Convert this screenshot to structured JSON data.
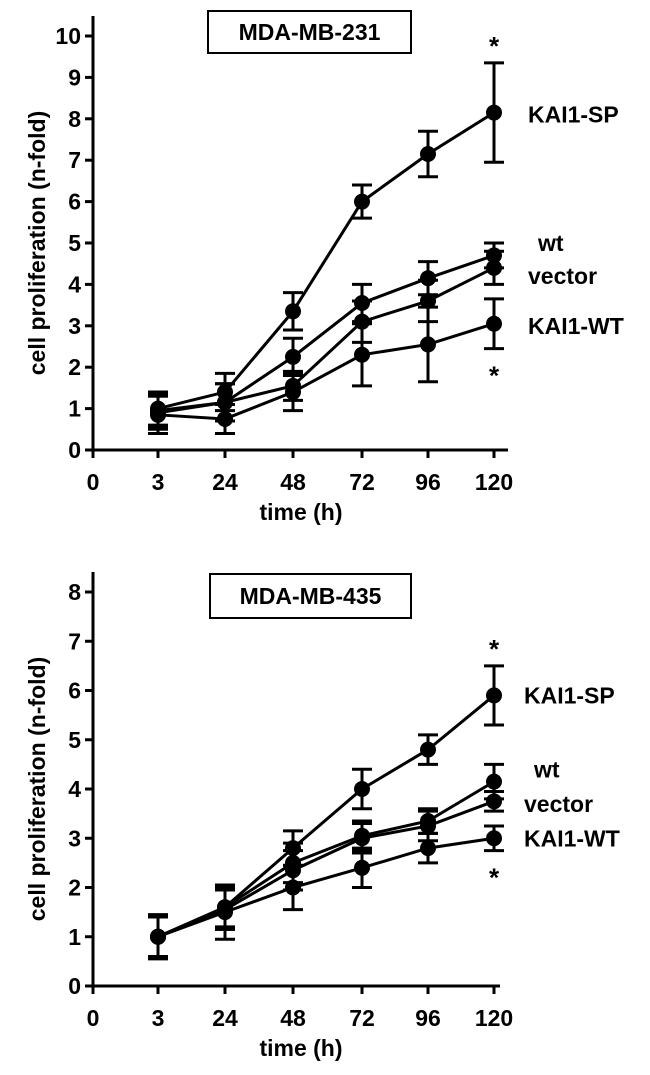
{
  "chart_data": [
    {
      "type": "line",
      "title": "MDA-MB-231",
      "xlabel": "time (h)",
      "ylabel": "cell proliferation (n-fold)",
      "x_ticks": [
        "0",
        "3",
        "24",
        "48",
        "72",
        "96",
        "120"
      ],
      "categories": [
        "3",
        "24",
        "48",
        "72",
        "96",
        "120"
      ],
      "y_ticks": [
        "0",
        "1",
        "2",
        "3",
        "4",
        "5",
        "6",
        "7",
        "8",
        "9",
        "10"
      ],
      "ylim": [
        0,
        10
      ],
      "series": [
        {
          "name": "KAI1-SP",
          "values": [
            1.0,
            1.4,
            3.35,
            6.0,
            7.15,
            8.15
          ],
          "err": [
            0.4,
            0.45,
            0.45,
            0.4,
            0.55,
            1.2
          ],
          "label_y": 8.1,
          "sig": "*",
          "sig_pos": "above"
        },
        {
          "name": "wt",
          "values": [
            0.95,
            1.15,
            2.25,
            3.55,
            4.15,
            4.7
          ],
          "err": [
            0.4,
            0.45,
            0.45,
            0.45,
            0.4,
            0.3
          ],
          "label_y": 5.0
        },
        {
          "name": "vector",
          "values": [
            0.9,
            1.15,
            1.55,
            3.1,
            3.6,
            4.4
          ],
          "err": [
            0.4,
            0.45,
            0.35,
            0.5,
            0.5,
            0.4
          ],
          "label_y": 4.2
        },
        {
          "name": "KAI1-WT",
          "values": [
            0.85,
            0.75,
            1.4,
            2.3,
            2.55,
            3.05
          ],
          "err": [
            0.45,
            0.35,
            0.45,
            0.75,
            0.9,
            0.6
          ],
          "label_y": 3.0,
          "sig": "*",
          "sig_pos": "below"
        }
      ]
    },
    {
      "type": "line",
      "title": "MDA-MB-435",
      "xlabel": "time (h)",
      "ylabel": "cell proliferation (n-fold)",
      "x_ticks": [
        "0",
        "3",
        "24",
        "48",
        "72",
        "96",
        "120"
      ],
      "categories": [
        "3",
        "24",
        "48",
        "72",
        "96",
        "120"
      ],
      "y_ticks": [
        "0",
        "1",
        "2",
        "3",
        "4",
        "5",
        "6",
        "7",
        "8"
      ],
      "ylim": [
        0,
        8
      ],
      "series": [
        {
          "name": "KAI1-SP",
          "values": [
            1.0,
            1.6,
            2.8,
            4.0,
            4.8,
            5.9
          ],
          "err": [
            0.4,
            0.45,
            0.35,
            0.4,
            0.3,
            0.6
          ],
          "label_y": 5.9,
          "sig": "*",
          "sig_pos": "above"
        },
        {
          "name": "wt",
          "values": [
            1.0,
            1.6,
            2.5,
            3.05,
            3.35,
            4.15
          ],
          "err": [
            0.4,
            0.4,
            0.4,
            0.3,
            0.25,
            0.35
          ],
          "label_y": 4.4
        },
        {
          "name": "vector",
          "values": [
            1.0,
            1.55,
            2.35,
            3.0,
            3.25,
            3.75
          ],
          "err": [
            0.4,
            0.4,
            0.4,
            0.3,
            0.3,
            0.2
          ],
          "label_y": 3.7
        },
        {
          "name": "KAI1-WT",
          "values": [
            1.0,
            1.5,
            2.0,
            2.4,
            2.8,
            3.0
          ],
          "err": [
            0.45,
            0.55,
            0.45,
            0.4,
            0.3,
            0.25
          ],
          "label_y": 3.0,
          "sig": "*",
          "sig_pos": "below"
        }
      ]
    }
  ]
}
